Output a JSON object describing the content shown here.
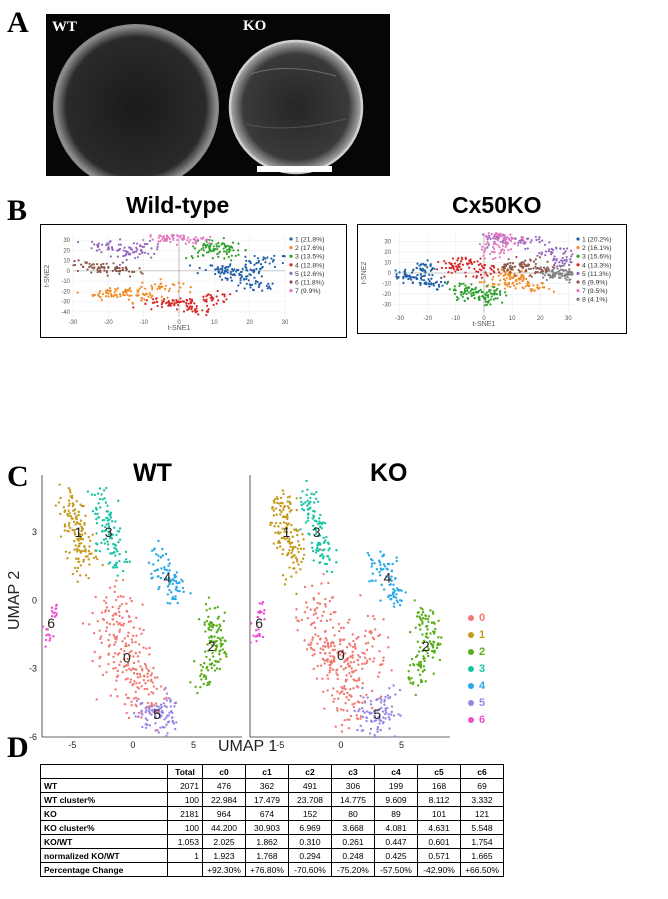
{
  "panels": {
    "a": "A",
    "b": "B",
    "c": "C",
    "d": "D"
  },
  "panel_a": {
    "label_wt": "WT",
    "label_ko": "KO"
  },
  "panel_b": {
    "wt": {
      "title": "Wild-type",
      "xlabel": "t-SNE1",
      "ylabel": "t-SNE2",
      "xticks": [
        "-30",
        "-20",
        "-10",
        "0",
        "10",
        "20",
        "30"
      ],
      "yticks": [
        "30",
        "20",
        "10",
        "0",
        "-10",
        "-20",
        "-30",
        "-40"
      ],
      "legend": [
        "1 (21.8%)",
        "2 (17.6%)",
        "3 (13.5%)",
        "4 (12.8%)",
        "5 (12.6%)",
        "6 (11.8%)",
        "7 (9.9%)"
      ]
    },
    "ko": {
      "title": "Cx50KO",
      "xlabel": "t-SNE1",
      "ylabel": "t-SNE2",
      "xticks": [
        "-30",
        "-20",
        "-10",
        "0",
        "10",
        "20",
        "30"
      ],
      "yticks": [
        "30",
        "20",
        "10",
        "0",
        "-10",
        "-20",
        "-30"
      ],
      "legend": [
        "1 (20.2%)",
        "2 (16.1%)",
        "3 (15.6%)",
        "4 (13.3%)",
        "5 (11.3%)",
        "6 (9.9%)",
        "7 (9.5%)",
        "8 (4.1%)"
      ]
    },
    "colors": [
      "#1f5fa8",
      "#f08a24",
      "#2ca02c",
      "#d62728",
      "#9467bd",
      "#8c564b",
      "#e377c2",
      "#7f7f7f"
    ]
  },
  "panel_c": {
    "title_wt": "WT",
    "title_ko": "KO",
    "xlabel": "UMAP 1",
    "ylabel": "UMAP 2",
    "yticks": [
      "3",
      "0",
      "-3",
      "-6"
    ],
    "xticks": [
      "-5",
      "0",
      "5"
    ],
    "legend": [
      "0",
      "1",
      "2",
      "3",
      "4",
      "5",
      "6"
    ],
    "colors": [
      "#f07a72",
      "#c49a1c",
      "#59ad19",
      "#17c3a3",
      "#26a8e6",
      "#9a86e8",
      "#ee4fd2"
    ]
  },
  "chart_data": [
    {
      "type": "scatter",
      "title": "Wild-type",
      "xlabel": "t-SNE1",
      "ylabel": "t-SNE2",
      "xlim": [
        -30,
        30
      ],
      "ylim": [
        -45,
        35
      ],
      "series": [
        {
          "name": "1 (21.8%)",
          "x": [
            20,
            25,
            15,
            22,
            10
          ],
          "y": [
            0,
            10,
            -5,
            -15,
            2
          ]
        },
        {
          "name": "2 (17.6%)",
          "x": [
            -15,
            -10,
            -5,
            -20
          ],
          "y": [
            -20,
            -25,
            -15,
            -22
          ]
        },
        {
          "name": "3 (13.5%)",
          "x": [
            10,
            14,
            8
          ],
          "y": [
            25,
            20,
            18
          ]
        },
        {
          "name": "4 (12.8%)",
          "x": [
            0,
            5,
            -5,
            10
          ],
          "y": [
            -30,
            -38,
            -33,
            -27
          ]
        },
        {
          "name": "5 (12.6%)",
          "x": [
            -20,
            -10,
            -15
          ],
          "y": [
            25,
            22,
            18
          ]
        },
        {
          "name": "6 (11.8%)",
          "x": [
            -28,
            -22,
            -16
          ],
          "y": [
            5,
            2,
            0
          ]
        },
        {
          "name": "7 (9.9%)",
          "x": [
            -5,
            0,
            4
          ],
          "y": [
            33,
            34,
            30
          ]
        }
      ]
    },
    {
      "type": "scatter",
      "title": "Cx50KO",
      "xlabel": "t-SNE1",
      "ylabel": "t-SNE2",
      "xlim": [
        -32,
        32
      ],
      "ylim": [
        -38,
        38
      ],
      "series": [
        {
          "name": "1 (20.2%)",
          "x": [
            -28,
            -22,
            -20,
            -25
          ],
          "y": [
            0,
            5,
            -10,
            -5
          ]
        },
        {
          "name": "2 (16.1%)",
          "x": [
            5,
            12,
            18,
            10
          ],
          "y": [
            -10,
            -5,
            -15,
            0
          ]
        },
        {
          "name": "3 (15.6%)",
          "x": [
            -5,
            0,
            3,
            -8
          ],
          "y": [
            -20,
            -25,
            -18,
            -15
          ]
        },
        {
          "name": "4 (13.3%)",
          "x": [
            -10,
            -5,
            0
          ],
          "y": [
            5,
            10,
            2
          ]
        },
        {
          "name": "5 (11.3%)",
          "x": [
            5,
            15,
            25,
            28
          ],
          "y": [
            33,
            30,
            20,
            10
          ]
        },
        {
          "name": "6 (9.9%)",
          "x": [
            10,
            15,
            20
          ],
          "y": [
            5,
            8,
            2
          ]
        },
        {
          "name": "7 (9.5%)",
          "x": [
            5,
            8,
            3
          ],
          "y": [
            35,
            30,
            20
          ]
        },
        {
          "name": "8 (4.1%)",
          "x": [
            25,
            28,
            30
          ],
          "y": [
            0,
            2,
            -2
          ]
        }
      ]
    },
    {
      "type": "scatter",
      "title": "WT",
      "xlabel": "UMAP 1",
      "ylabel": "UMAP 2",
      "xlim": [
        -7.5,
        9
      ],
      "ylim": [
        -6,
        5.5
      ],
      "series": [
        {
          "name": "0",
          "x": [
            -2,
            -1,
            0,
            1
          ],
          "y": [
            -1,
            -2,
            -3,
            -4
          ]
        },
        {
          "name": "1",
          "x": [
            -5,
            -4.5,
            -4
          ],
          "y": [
            4,
            3,
            2
          ]
        },
        {
          "name": "2",
          "x": [
            6.5,
            7,
            6
          ],
          "y": [
            -1,
            -2,
            -3
          ]
        },
        {
          "name": "3",
          "x": [
            -2.5,
            -2,
            -1.5
          ],
          "y": [
            4,
            3,
            2
          ]
        },
        {
          "name": "4",
          "x": [
            2,
            3,
            3.5
          ],
          "y": [
            1.5,
            1,
            0.5
          ]
        },
        {
          "name": "5",
          "x": [
            1,
            2,
            3
          ],
          "y": [
            -5,
            -5.2,
            -4.8
          ]
        },
        {
          "name": "6",
          "x": [
            -7,
            -6.5
          ],
          "y": [
            -1.5,
            -0.5
          ]
        }
      ]
    },
    {
      "type": "scatter",
      "title": "KO",
      "xlabel": "UMAP 1",
      "ylabel": "UMAP 2",
      "xlim": [
        -7.5,
        9
      ],
      "ylim": [
        -6,
        5.5
      ],
      "series": [
        {
          "name": "0",
          "x": [
            -2,
            -1,
            0,
            1,
            2
          ],
          "y": [
            -1,
            -2,
            -3,
            -4,
            -2
          ]
        },
        {
          "name": "1",
          "x": [
            -5,
            -4.5,
            -4
          ],
          "y": [
            4,
            3,
            2
          ]
        },
        {
          "name": "2",
          "x": [
            7,
            7.5,
            6.5
          ],
          "y": [
            -1,
            -2,
            -3
          ]
        },
        {
          "name": "3",
          "x": [
            -2.5,
            -2,
            -1.5
          ],
          "y": [
            4,
            3,
            2
          ]
        },
        {
          "name": "4",
          "x": [
            3,
            4,
            4.5
          ],
          "y": [
            1.5,
            1,
            0.5
          ]
        },
        {
          "name": "5",
          "x": [
            2,
            3,
            4
          ],
          "y": [
            -5,
            -5.2,
            -4.8
          ]
        },
        {
          "name": "6",
          "x": [
            -7,
            -6.5
          ],
          "y": [
            -1.5,
            -0.5
          ]
        }
      ]
    }
  ],
  "table": {
    "header": [
      "",
      "Total",
      "c0",
      "c1",
      "c2",
      "c3",
      "c4",
      "c5",
      "c6"
    ],
    "rows": [
      {
        "label": "WT",
        "cells": [
          "2071",
          "476",
          "362",
          "491",
          "306",
          "199",
          "168",
          "69"
        ]
      },
      {
        "label": "WT cluster%",
        "cells": [
          "100",
          "22.984",
          "17.479",
          "23.708",
          "14.775",
          "9.609",
          "8.112",
          "3.332"
        ]
      },
      {
        "label": "KO",
        "cells": [
          "2181",
          "964",
          "674",
          "152",
          "80",
          "89",
          "101",
          "121"
        ]
      },
      {
        "label": "KO cluster%",
        "cells": [
          "100",
          "44.200",
          "30.903",
          "6.969",
          "3.668",
          "4.081",
          "4.631",
          "5.548"
        ]
      },
      {
        "label": "KO/WT",
        "cells": [
          "1.053",
          "2.025",
          "1.862",
          "0.310",
          "0.261",
          "0.447",
          "0.601",
          "1.754"
        ]
      },
      {
        "label": "normalized KO/WT",
        "cells": [
          "1",
          "1.923",
          "1.768",
          "0.294",
          "0.248",
          "0.425",
          "0.571",
          "1.665"
        ]
      },
      {
        "label": "Percentage Change",
        "cells": [
          "",
          "+92.30%",
          "+76.80%",
          "-70.60%",
          "-75.20%",
          "-57.50%",
          "-42.90%",
          "+66.50%"
        ]
      }
    ]
  }
}
